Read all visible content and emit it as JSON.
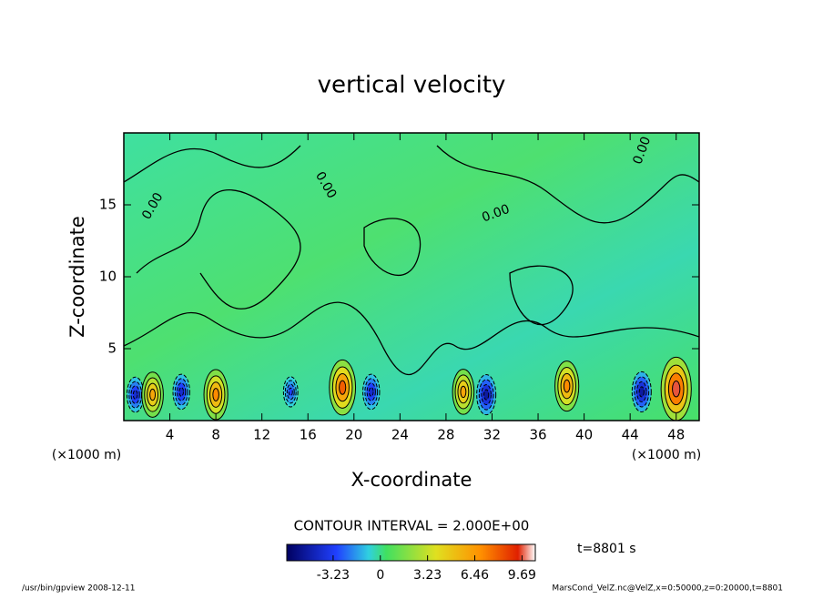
{
  "chart_data": {
    "type": "contour",
    "title": "vertical velocity",
    "xlabel": "X-coordinate",
    "ylabel": "Z-coordinate",
    "xunit": "(×1000 m)",
    "yunit": "(×1000 m)",
    "xlim": [
      0,
      50
    ],
    "ylim": [
      0,
      20
    ],
    "xticks": [
      4,
      8,
      12,
      16,
      20,
      24,
      28,
      32,
      36,
      40,
      44,
      48
    ],
    "yticks": [
      5,
      10,
      15
    ],
    "contour_interval": "CONTOUR INTERVAL = 2.000E+00",
    "contour_label": "0.00",
    "time_label": "t=8801 s",
    "clim": [
      -6.4,
      10.6
    ],
    "cticks": [
      -3.23,
      0,
      3.23,
      6.46,
      9.69
    ],
    "cells": {
      "x": [
        1,
        2.5,
        5,
        8,
        14.5,
        19,
        21.5,
        29.5,
        31.5,
        38.5,
        45,
        48
      ],
      "z": [
        1.8,
        1.8,
        2,
        1.8,
        2,
        2.3,
        2,
        2,
        1.8,
        2.4,
        2,
        2.2
      ],
      "values": [
        -4,
        6,
        -4,
        7,
        -3,
        8,
        -4,
        6,
        -5,
        7,
        -5,
        9.69
      ]
    },
    "footer_left": "/usr/bin/gpview   2008-12-11",
    "footer_right": "MarsCond_VelZ.nc@VelZ,x=0:50000,z=0:20000,t=8801"
  }
}
